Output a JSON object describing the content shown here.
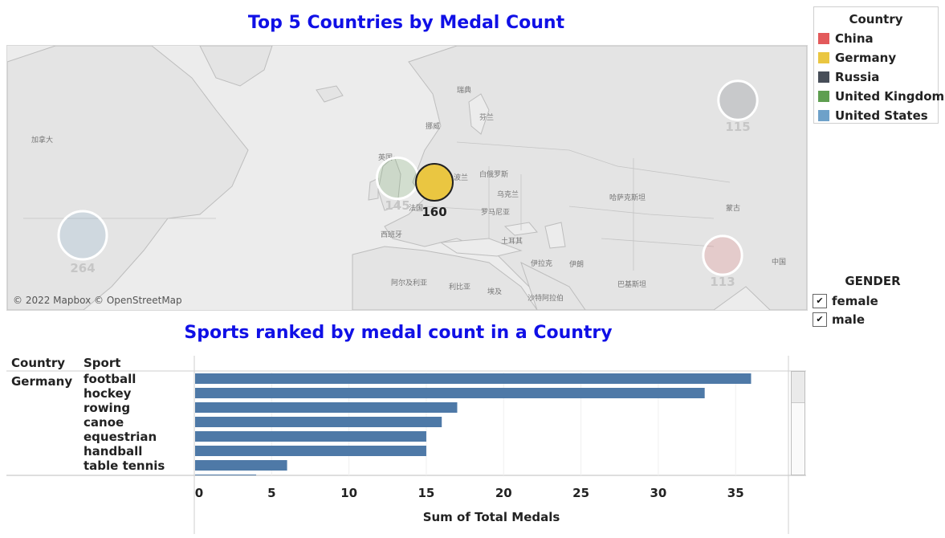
{
  "map_section": {
    "title": "Top 5 Countries by Medal Count",
    "attribution": "© 2022 Mapbox © OpenStreetMap"
  },
  "country_legend": {
    "title": "Country",
    "items": [
      {
        "label": "China",
        "color": "#e35a5b"
      },
      {
        "label": "Germany",
        "color": "#eac641"
      },
      {
        "label": "Russia",
        "color": "#474e58"
      },
      {
        "label": "United Kingdom",
        "color": "#5e9e50"
      },
      {
        "label": "United States",
        "color": "#6ea1c9"
      }
    ]
  },
  "gender_filter": {
    "title": "GENDER",
    "options": [
      {
        "label": "female",
        "checked": true
      },
      {
        "label": "male",
        "checked": true
      }
    ]
  },
  "map_bubbles": [
    {
      "country": "United States",
      "value": 264,
      "label": "264",
      "highlighted": false
    },
    {
      "country": "United Kingdom",
      "value": 145,
      "label": "145",
      "highlighted": false
    },
    {
      "country": "Germany",
      "value": 160,
      "label": "160",
      "highlighted": true
    },
    {
      "country": "Russia",
      "value": 115,
      "label": "115",
      "highlighted": false
    },
    {
      "country": "China",
      "value": 113,
      "label": "113",
      "highlighted": false
    }
  ],
  "map_place_labels": [
    "加拿大",
    "芬兰",
    "挪威",
    "瑞典",
    "波兰",
    "白俄罗斯",
    "乌克兰",
    "罗马尼亚",
    "英国",
    "法国",
    "西班牙",
    "土耳其",
    "伊拉克",
    "伊朗",
    "阿尔及利亚",
    "利比亚",
    "埃及",
    "沙特阿拉伯",
    "哈萨克斯坦",
    "蒙古",
    "中国",
    "巴基斯坦"
  ],
  "bar_section": {
    "title": "Sports ranked by medal count in a Country",
    "col_country": "Country",
    "col_sport": "Sport",
    "country": "Germany"
  },
  "chart_data": {
    "type": "bar",
    "orientation": "horizontal",
    "title": "Sports ranked by medal count in a Country",
    "xlabel": "Sum of Total Medals",
    "xlim": [
      0,
      38
    ],
    "x_ticks": [
      0,
      5,
      10,
      15,
      20,
      25,
      30,
      35
    ],
    "grid": true,
    "bar_color": "#4e79a7",
    "categories": [
      "football",
      "hockey",
      "rowing",
      "canoe",
      "equestrian",
      "handball",
      "table tennis",
      ""
    ],
    "values": [
      36,
      33,
      17,
      16,
      15,
      15,
      6,
      4
    ]
  }
}
